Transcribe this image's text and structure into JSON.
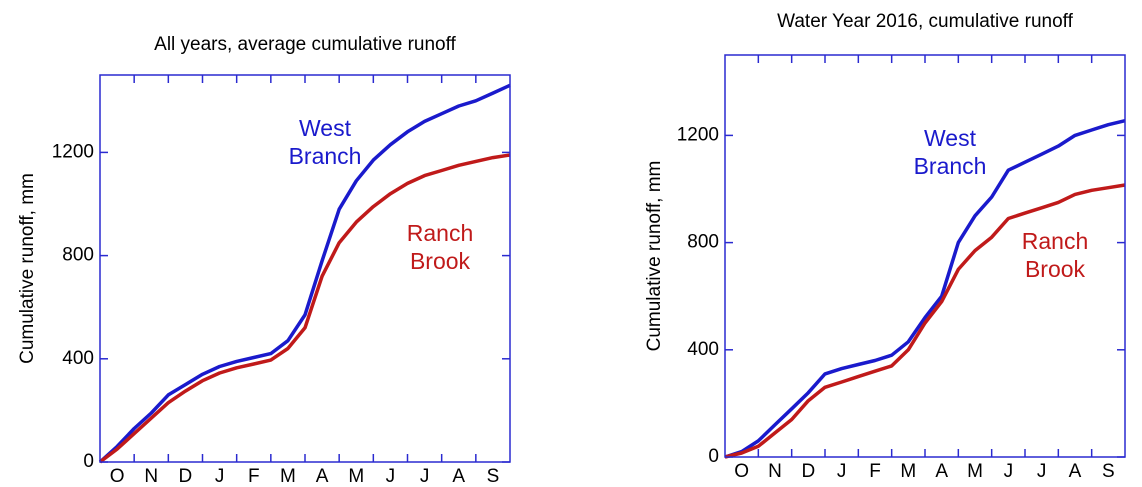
{
  "chart_data": [
    {
      "type": "line",
      "title": "All years, average cumulative runoff",
      "ylabel": "Cumulative runoff, mm",
      "categories": [
        "O",
        "N",
        "D",
        "J",
        "F",
        "M",
        "A",
        "M",
        "J",
        "J",
        "A",
        "S"
      ],
      "x": [
        0,
        0.5,
        1,
        1.5,
        2,
        2.5,
        3,
        3.5,
        4,
        4.5,
        5,
        5.5,
        6,
        6.5,
        7,
        7.5,
        8,
        8.5,
        9,
        9.5,
        10,
        10.5,
        11,
        11.5,
        12
      ],
      "xlim": [
        0,
        12
      ],
      "ylim": [
        0,
        1500
      ],
      "yticks": [
        0,
        400,
        800,
        1200
      ],
      "series": [
        {
          "color": "#1a1acc",
          "values": [
            0,
            60,
            130,
            190,
            260,
            300,
            340,
            370,
            390,
            405,
            420,
            470,
            570,
            780,
            980,
            1090,
            1170,
            1230,
            1280,
            1320,
            1350,
            1380,
            1400,
            1430,
            1460
          ]
        },
        {
          "color": "#c01a1a",
          "values": [
            0,
            50,
            110,
            170,
            230,
            275,
            315,
            345,
            365,
            380,
            395,
            440,
            520,
            720,
            850,
            930,
            990,
            1040,
            1080,
            1110,
            1130,
            1150,
            1165,
            1180,
            1190
          ]
        }
      ],
      "annotations": [
        {
          "lines": [
            "West",
            "Branch"
          ],
          "color": "#1a1acc"
        },
        {
          "lines": [
            "Ranch",
            "Brook"
          ],
          "color": "#c01a1a"
        }
      ]
    },
    {
      "type": "line",
      "title": "Water Year 2016, cumulative runoff",
      "ylabel": "Cumulative runoff, mm",
      "categories": [
        "O",
        "N",
        "D",
        "J",
        "F",
        "M",
        "A",
        "M",
        "J",
        "J",
        "A",
        "S"
      ],
      "x": [
        0,
        0.5,
        1,
        1.5,
        2,
        2.5,
        3,
        3.5,
        4,
        4.5,
        5,
        5.5,
        6,
        6.5,
        7,
        7.5,
        8,
        8.5,
        9,
        9.5,
        10,
        10.5,
        11,
        11.5,
        12
      ],
      "xlim": [
        0,
        12
      ],
      "ylim": [
        0,
        1500
      ],
      "yticks": [
        0,
        400,
        800,
        1200
      ],
      "series": [
        {
          "color": "#1a1acc",
          "values": [
            0,
            20,
            60,
            120,
            180,
            240,
            310,
            330,
            345,
            360,
            380,
            430,
            520,
            600,
            800,
            900,
            970,
            1070,
            1100,
            1130,
            1160,
            1200,
            1220,
            1240,
            1255
          ]
        },
        {
          "color": "#c01a1a",
          "values": [
            0,
            15,
            40,
            90,
            140,
            210,
            260,
            280,
            300,
            320,
            340,
            400,
            500,
            580,
            700,
            770,
            820,
            890,
            910,
            930,
            950,
            980,
            995,
            1005,
            1015
          ]
        }
      ],
      "annotations": [
        {
          "lines": [
            "West",
            "Branch"
          ],
          "color": "#1a1acc"
        },
        {
          "lines": [
            "Ranch",
            "Brook"
          ],
          "color": "#c01a1a"
        }
      ]
    }
  ]
}
